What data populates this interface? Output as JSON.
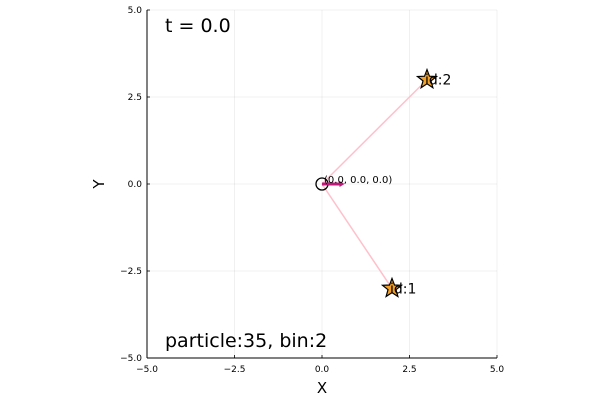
{
  "chart_data": {
    "type": "scatter",
    "xlabel": "X",
    "ylabel": "Y",
    "xlim": [
      -5,
      5
    ],
    "ylim": [
      -5,
      5
    ],
    "grid": true,
    "x_ticks": [
      -5,
      -2.5,
      0,
      2.5,
      5
    ],
    "y_ticks": [
      -5,
      -2.5,
      0,
      2.5,
      5
    ],
    "x_tick_labels": [
      "−5.0",
      "−2.5",
      "0.0",
      "2.5",
      "5.0"
    ],
    "y_tick_labels": [
      "−5.0",
      "−2.5",
      "0.0",
      "2.5",
      "5.0"
    ],
    "time_label": "t = 0.0",
    "info_label": "particle:35, bin:2",
    "origin": {
      "x": 0.0,
      "y": 0.0,
      "label": "(0.0, 0.0, 0.0)",
      "vector": {
        "dx": 0.5,
        "dy": 0.0,
        "color": "#c0187a"
      }
    },
    "points": [
      {
        "id": "2",
        "label": "id:2",
        "x": 3.0,
        "y": 3.0,
        "color": "#f3a128"
      },
      {
        "id": "1",
        "label": "id:1",
        "x": 2.0,
        "y": -3.0,
        "color": "#f3a128"
      }
    ],
    "line_color": "#ffc0cb"
  }
}
